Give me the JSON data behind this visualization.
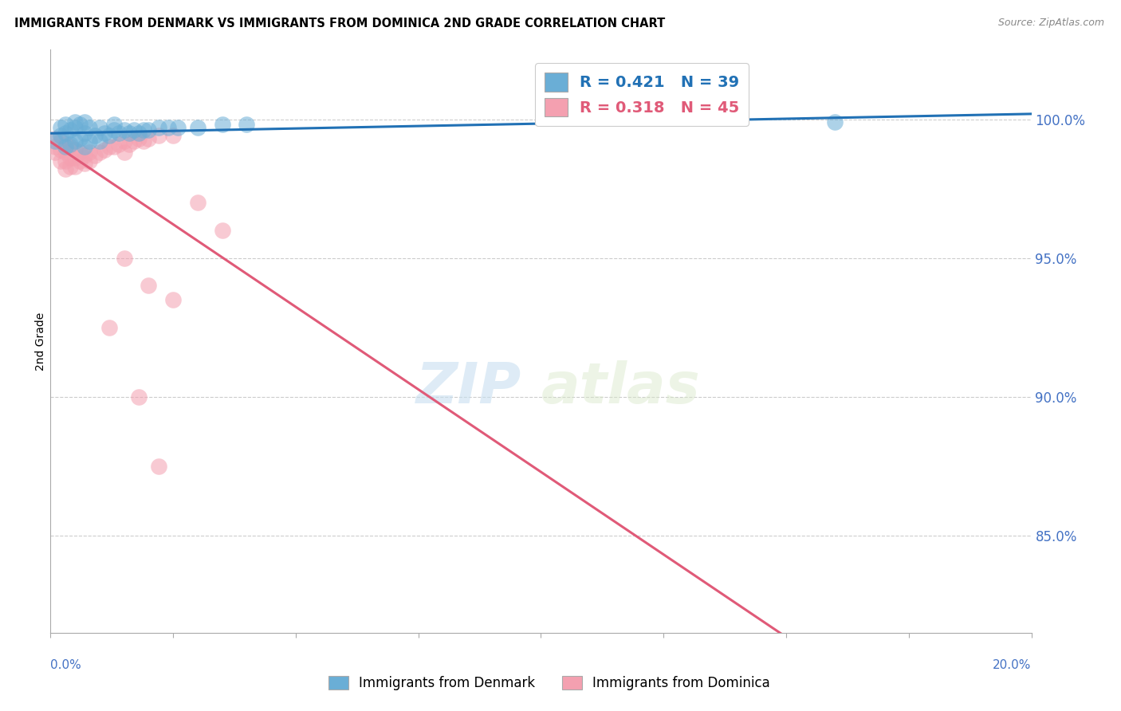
{
  "title": "IMMIGRANTS FROM DENMARK VS IMMIGRANTS FROM DOMINICA 2ND GRADE CORRELATION CHART",
  "source": "Source: ZipAtlas.com",
  "ylabel": "2nd Grade",
  "ytick_labels": [
    "100.0%",
    "95.0%",
    "90.0%",
    "85.0%"
  ],
  "xmin": 0.0,
  "xmax": 0.2,
  "ymin": 0.815,
  "ymax": 1.025,
  "denmark_R": 0.421,
  "denmark_N": 39,
  "dominica_R": 0.318,
  "dominica_N": 45,
  "denmark_color": "#6aaed6",
  "dominica_color": "#f4a0b0",
  "denmark_line_color": "#2171b5",
  "dominica_line_color": "#e05a78",
  "legend_label_denmark": "Immigrants from Denmark",
  "legend_label_dominica": "Immigrants from Dominica",
  "denmark_x": [
    0.001,
    0.002,
    0.002,
    0.003,
    0.003,
    0.003,
    0.004,
    0.004,
    0.005,
    0.005,
    0.005,
    0.006,
    0.006,
    0.007,
    0.007,
    0.007,
    0.008,
    0.008,
    0.009,
    0.01,
    0.01,
    0.011,
    0.012,
    0.013,
    0.013,
    0.014,
    0.015,
    0.016,
    0.017,
    0.018,
    0.019,
    0.02,
    0.022,
    0.024,
    0.026,
    0.03,
    0.035,
    0.04,
    0.16
  ],
  "denmark_y": [
    0.992,
    0.994,
    0.997,
    0.99,
    0.995,
    0.998,
    0.991,
    0.996,
    0.992,
    0.997,
    0.999,
    0.993,
    0.998,
    0.99,
    0.995,
    0.999,
    0.992,
    0.997,
    0.994,
    0.992,
    0.997,
    0.995,
    0.994,
    0.996,
    0.998,
    0.995,
    0.996,
    0.995,
    0.996,
    0.995,
    0.996,
    0.996,
    0.997,
    0.997,
    0.997,
    0.997,
    0.998,
    0.998,
    0.999
  ],
  "dominica_x": [
    0.001,
    0.001,
    0.001,
    0.002,
    0.002,
    0.002,
    0.003,
    0.003,
    0.003,
    0.003,
    0.004,
    0.004,
    0.004,
    0.005,
    0.005,
    0.005,
    0.006,
    0.006,
    0.007,
    0.007,
    0.008,
    0.008,
    0.009,
    0.01,
    0.011,
    0.012,
    0.013,
    0.014,
    0.015,
    0.015,
    0.016,
    0.017,
    0.018,
    0.019,
    0.02,
    0.022,
    0.025,
    0.03,
    0.035,
    0.015,
    0.02,
    0.025,
    0.012,
    0.018,
    0.022
  ],
  "dominica_y": [
    0.993,
    0.99,
    0.988,
    0.992,
    0.989,
    0.985,
    0.991,
    0.988,
    0.985,
    0.982,
    0.99,
    0.986,
    0.983,
    0.989,
    0.986,
    0.983,
    0.988,
    0.985,
    0.987,
    0.984,
    0.988,
    0.985,
    0.987,
    0.988,
    0.989,
    0.99,
    0.99,
    0.991,
    0.992,
    0.988,
    0.991,
    0.992,
    0.993,
    0.992,
    0.993,
    0.994,
    0.994,
    0.97,
    0.96,
    0.95,
    0.94,
    0.935,
    0.925,
    0.9,
    0.875
  ],
  "watermark_zip": "ZIP",
  "watermark_atlas": "atlas",
  "background_color": "#ffffff",
  "grid_color": "#cccccc"
}
